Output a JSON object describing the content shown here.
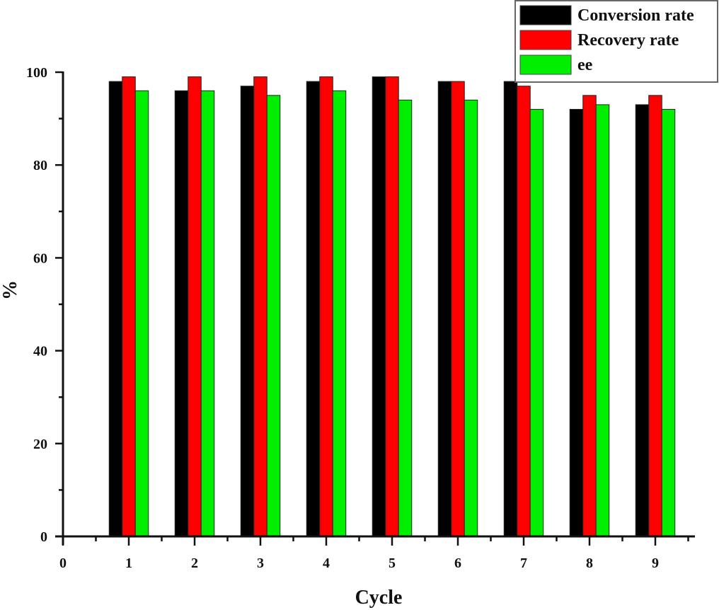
{
  "chart_data": {
    "type": "bar",
    "title": "",
    "xlabel": "Cycle",
    "ylabel": "%",
    "categories": [
      "1",
      "2",
      "3",
      "4",
      "5",
      "6",
      "7",
      "8",
      "9"
    ],
    "x_ticks": [
      "0",
      "1",
      "2",
      "3",
      "4",
      "5",
      "6",
      "7",
      "8",
      "9"
    ],
    "y_ticks": [
      "0",
      "20",
      "40",
      "60",
      "80",
      "100"
    ],
    "xlim": [
      0,
      9.6
    ],
    "ylim": [
      0,
      100
    ],
    "grid": false,
    "legend_position": "top-right",
    "series": [
      {
        "name": "Conversion rate",
        "color": "#000000",
        "values": [
          98,
          96,
          97,
          98,
          99,
          98,
          98,
          92,
          93
        ]
      },
      {
        "name": "Recovery rate",
        "color": "#ff0000",
        "values": [
          99,
          99,
          99,
          99,
          99,
          98,
          97,
          95,
          95
        ]
      },
      {
        "name": "ee",
        "color": "#00ee00",
        "values": [
          96,
          96,
          95,
          96,
          94,
          94,
          92,
          93,
          92
        ]
      }
    ]
  }
}
